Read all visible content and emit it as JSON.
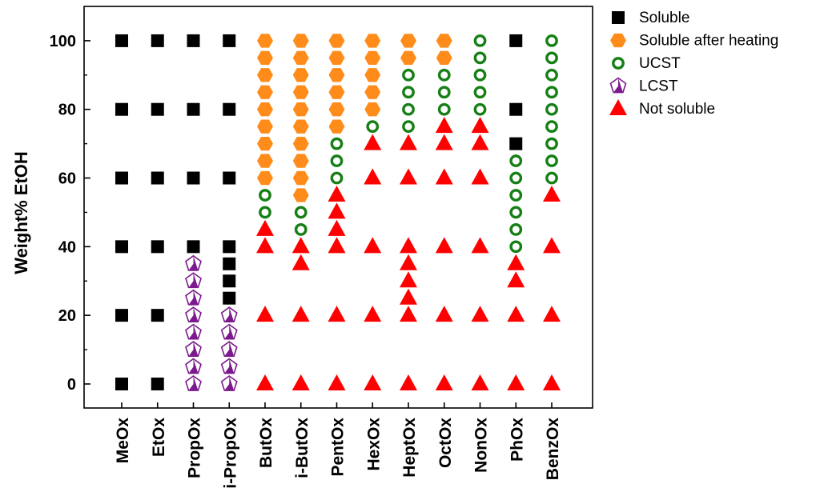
{
  "chart_data": {
    "type": "scatter",
    "title": "",
    "xlabel": "",
    "ylabel": "Weight% EtOH",
    "ylim": [
      -7,
      110
    ],
    "yticks": [
      0,
      20,
      40,
      60,
      80,
      100
    ],
    "grid": false,
    "legend_position": "top-right, outside plot",
    "categories": [
      "MeOx",
      "EtOx",
      "PropOx",
      "i-PropOx",
      "ButOx",
      "i-ButOx",
      "PentOx",
      "HexOx",
      "HeptOx",
      "OctOx",
      "NonOx",
      "PhOx",
      "BenzOx"
    ],
    "series": [
      {
        "name": "Soluble",
        "marker": "square",
        "color": "#000000",
        "points": [
          {
            "category": "MeOx",
            "values": [
              0,
              20,
              40,
              60,
              80,
              100
            ]
          },
          {
            "category": "EtOx",
            "values": [
              0,
              20,
              40,
              60,
              80,
              100
            ]
          },
          {
            "category": "PropOx",
            "values": [
              40,
              60,
              80,
              100
            ]
          },
          {
            "category": "i-PropOx",
            "values": [
              25,
              30,
              35,
              40,
              60,
              80,
              100
            ]
          },
          {
            "category": "PhOx",
            "values": [
              70,
              80,
              100
            ]
          }
        ]
      },
      {
        "name": "Soluble after heating",
        "marker": "hexagon",
        "color": "#FF8C1A",
        "points": [
          {
            "category": "ButOx",
            "values": [
              60,
              65,
              70,
              75,
              80,
              85,
              90,
              95,
              100
            ]
          },
          {
            "category": "i-ButOx",
            "values": [
              55,
              60,
              65,
              70,
              75,
              80,
              85,
              90,
              95,
              100
            ]
          },
          {
            "category": "PentOx",
            "values": [
              75,
              80,
              85,
              90,
              95,
              100
            ]
          },
          {
            "category": "HexOx",
            "values": [
              80,
              85,
              90,
              95,
              100
            ]
          },
          {
            "category": "HeptOx",
            "values": [
              95,
              100
            ]
          },
          {
            "category": "OctOx",
            "values": [
              95,
              100
            ]
          }
        ]
      },
      {
        "name": "UCST",
        "marker": "ring",
        "color": "#168016",
        "points": [
          {
            "category": "ButOx",
            "values": [
              50,
              55
            ]
          },
          {
            "category": "i-ButOx",
            "values": [
              45,
              50
            ]
          },
          {
            "category": "PentOx",
            "values": [
              60,
              65,
              70
            ]
          },
          {
            "category": "HexOx",
            "values": [
              75
            ]
          },
          {
            "category": "HeptOx",
            "values": [
              75,
              80,
              85,
              90
            ]
          },
          {
            "category": "OctOx",
            "values": [
              80,
              85,
              90
            ]
          },
          {
            "category": "NonOx",
            "values": [
              80,
              85,
              90,
              95,
              100
            ]
          },
          {
            "category": "PhOx",
            "values": [
              40,
              45,
              50,
              55,
              60,
              65
            ]
          },
          {
            "category": "BenzOx",
            "values": [
              60,
              65,
              70,
              75,
              80,
              85,
              90,
              95,
              100
            ]
          }
        ]
      },
      {
        "name": "LCST",
        "marker": "pentagon",
        "color": "#7B1A8C",
        "points": [
          {
            "category": "PropOx",
            "values": [
              0,
              5,
              10,
              15,
              20,
              25,
              30,
              35
            ]
          },
          {
            "category": "i-PropOx",
            "values": [
              0,
              5,
              10,
              15,
              20
            ]
          }
        ]
      },
      {
        "name": "Not soluble",
        "marker": "triangle",
        "color": "#FF0000",
        "points": [
          {
            "category": "ButOx",
            "values": [
              0,
              20,
              40,
              45
            ]
          },
          {
            "category": "i-ButOx",
            "values": [
              0,
              20,
              35,
              40
            ]
          },
          {
            "category": "PentOx",
            "values": [
              0,
              20,
              40,
              45,
              50,
              55
            ]
          },
          {
            "category": "HexOx",
            "values": [
              0,
              20,
              40,
              60,
              70
            ]
          },
          {
            "category": "HeptOx",
            "values": [
              0,
              20,
              25,
              30,
              35,
              40,
              60,
              70
            ]
          },
          {
            "category": "OctOx",
            "values": [
              0,
              20,
              40,
              60,
              70,
              75
            ]
          },
          {
            "category": "NonOx",
            "values": [
              0,
              20,
              40,
              60,
              70,
              75
            ]
          },
          {
            "category": "PhOx",
            "values": [
              0,
              20,
              30,
              35
            ]
          },
          {
            "category": "BenzOx",
            "values": [
              0,
              20,
              40,
              55
            ]
          }
        ]
      }
    ]
  }
}
